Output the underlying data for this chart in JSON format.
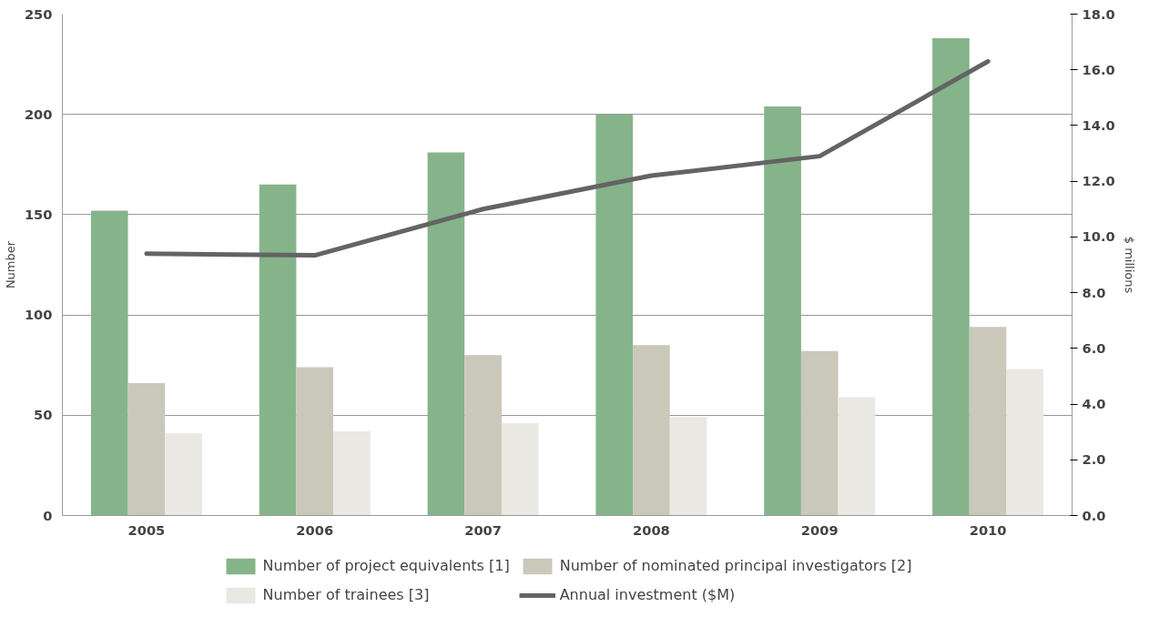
{
  "chart_data": {
    "type": "bar",
    "categories": [
      "2005",
      "2006",
      "2007",
      "2008",
      "2009",
      "2010"
    ],
    "ylabel": "Number",
    "y2label": "$ millions",
    "ylim": [
      0,
      250
    ],
    "yticks": [
      0,
      50,
      100,
      150,
      200,
      250
    ],
    "y2lim": [
      0,
      18
    ],
    "y2ticks": [
      {
        "value": 0,
        "label": "0.0"
      },
      {
        "value": 2,
        "label": "2.0"
      },
      {
        "value": 4,
        "label": "4.0"
      },
      {
        "value": 6,
        "label": "6.0"
      },
      {
        "value": 8,
        "label": "8.0"
      },
      {
        "value": 10,
        "label": "10.0"
      },
      {
        "value": 12,
        "label": "12.0"
      },
      {
        "value": 14,
        "label": "14.0"
      },
      {
        "value": 16,
        "label": "16.0"
      },
      {
        "value": 18,
        "label": "18.0"
      }
    ],
    "grid": "y",
    "legend": "bottom",
    "series": [
      {
        "name": "Number of project equivalents [1]",
        "color": "#86b48a",
        "values": [
          152,
          165,
          181,
          200,
          204,
          238
        ]
      },
      {
        "name": "Number of nominated principal investigators [2]",
        "color": "#cac8bb",
        "values": [
          66,
          74,
          80,
          85,
          82,
          94
        ]
      },
      {
        "name": "Number of trainees [3]",
        "color": "#e9e8e3",
        "values": [
          41,
          42,
          46,
          49,
          59,
          73
        ]
      },
      {
        "name": "Annual investment ($M)",
        "color": "#646464",
        "type": "line",
        "axis": "y2",
        "values": [
          9.4,
          9.34,
          11.0,
          12.2,
          12.9,
          16.3
        ]
      }
    ]
  }
}
